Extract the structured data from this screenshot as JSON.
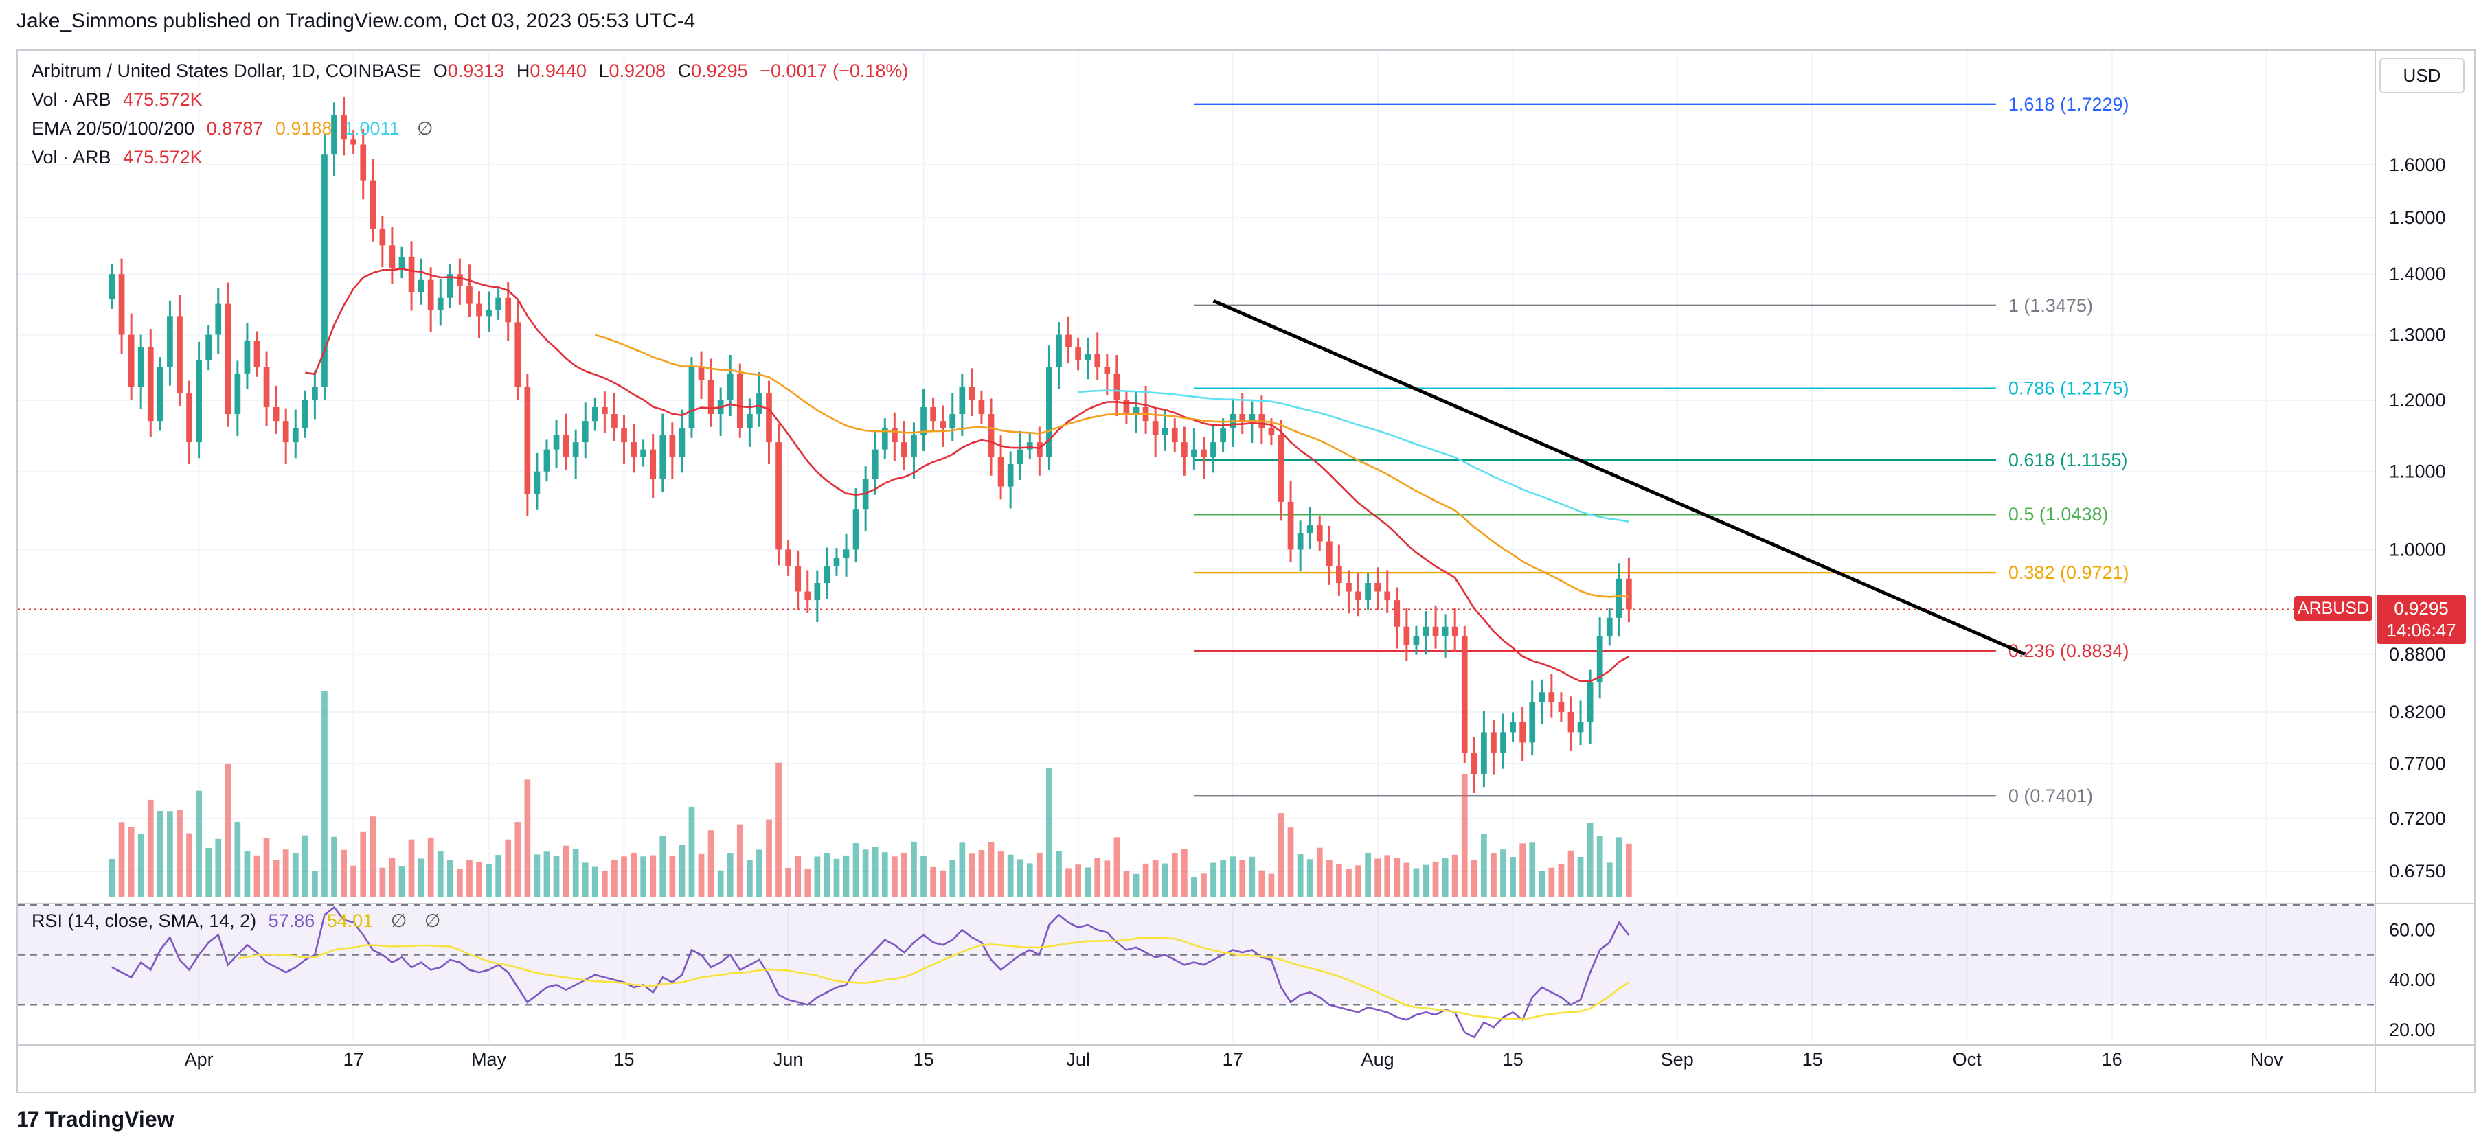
{
  "header": {
    "publisher": "Jake_Simmons published on TradingView.com, Oct 03, 2023 05:53 UTC-4"
  },
  "legend": {
    "symbol": "Arbitrum / United States Dollar, 1D, COINBASE",
    "ohlc": [
      {
        "k": "O",
        "v": "0.9313"
      },
      {
        "k": "H",
        "v": "0.9440"
      },
      {
        "k": "L",
        "v": "0.9208"
      },
      {
        "k": "C",
        "v": "0.9295"
      }
    ],
    "change": "−0.0017 (−0.18%)",
    "vol_label": "Vol · ARB",
    "vol_value": "475.572K",
    "ema_label": "EMA 20/50/100/200",
    "ema_values": [
      "0.8787",
      "0.9188",
      "1.0011"
    ],
    "vol2_label": "Vol · ARB",
    "vol2_value": "475.572K",
    "hide_icon": "∅"
  },
  "rsi_legend": {
    "label": "RSI (14, close, SMA, 14, 2)",
    "rsi": "57.86",
    "sma": "54.01",
    "icons": [
      "∅",
      "∅"
    ]
  },
  "axis": {
    "currency": "USD",
    "price_ticks": [
      "1.6000",
      "1.5000",
      "1.4000",
      "1.3000",
      "1.2000",
      "1.1000",
      "1.0000",
      "0.8800",
      "0.8200",
      "0.7700",
      "0.7200",
      "0.6750"
    ],
    "rsi_ticks": [
      "60.00",
      "40.00",
      "20.00"
    ],
    "time_ticks": [
      "Apr",
      "17",
      "May",
      "15",
      "Jun",
      "15",
      "Jul",
      "17",
      "Aug",
      "15",
      "Sep",
      "15",
      "Oct",
      "16",
      "Nov"
    ]
  },
  "price_badge": {
    "symbol": "ARBUSD",
    "price": "0.9295",
    "countdown": "14:06:47"
  },
  "fibonacci": [
    {
      "label": "1.618 (1.7229)",
      "level": 1.7229,
      "color": "#2962ff"
    },
    {
      "label": "1 (1.3475)",
      "level": 1.3475,
      "color": "#787b86"
    },
    {
      "label": "0.786 (1.2175)",
      "level": 1.2175,
      "color": "#00bcd4"
    },
    {
      "label": "0.618 (1.1155)",
      "level": 1.1155,
      "color": "#089981"
    },
    {
      "label": "0.5 (1.0438)",
      "level": 1.0438,
      "color": "#4caf50"
    },
    {
      "label": "0.382 (0.9721)",
      "level": 0.9721,
      "color": "#f0a500"
    },
    {
      "label": "0.236 (0.8834)",
      "level": 0.8834,
      "color": "#e0303a"
    },
    {
      "label": "0 (0.7401)",
      "level": 0.7401,
      "color": "#787b86"
    }
  ],
  "colors": {
    "up": "#26a69a",
    "down": "#ef5350",
    "ema20": "#e0303a",
    "ema50": "#f3a01e",
    "ema100": "#5ee0f0",
    "rsi_line": "#7e57c2",
    "rsi_sma": "#f7e23e",
    "trendline": "#000000"
  },
  "footer": {
    "logo_mark": "17",
    "logo_text": "TradingView"
  },
  "chart_data": {
    "type": "candlestick",
    "title": "Arbitrum / United States Dollar, 1D, COINBASE",
    "ylabel": "USD",
    "ylim": [
      0.66,
      1.78
    ],
    "x_start": "2023-03-23",
    "x_end_axis": "2023-11-05",
    "close": [
      1.4,
      1.3,
      1.22,
      1.28,
      1.17,
      1.25,
      1.33,
      1.21,
      1.14,
      1.26,
      1.3,
      1.35,
      1.18,
      1.24,
      1.29,
      1.25,
      1.19,
      1.17,
      1.14,
      1.16,
      1.2,
      1.22,
      1.62,
      1.7,
      1.65,
      1.64,
      1.57,
      1.48,
      1.45,
      1.41,
      1.43,
      1.37,
      1.39,
      1.34,
      1.36,
      1.4,
      1.38,
      1.35,
      1.33,
      1.34,
      1.36,
      1.32,
      1.22,
      1.07,
      1.1,
      1.13,
      1.15,
      1.12,
      1.14,
      1.17,
      1.19,
      1.18,
      1.16,
      1.14,
      1.12,
      1.13,
      1.09,
      1.15,
      1.12,
      1.16,
      1.25,
      1.23,
      1.18,
      1.2,
      1.24,
      1.16,
      1.18,
      1.21,
      1.14,
      1.0,
      0.98,
      0.95,
      0.94,
      0.96,
      0.98,
      0.99,
      1.0,
      1.05,
      1.09,
      1.13,
      1.16,
      1.14,
      1.12,
      1.15,
      1.19,
      1.17,
      1.16,
      1.18,
      1.22,
      1.2,
      1.18,
      1.12,
      1.08,
      1.11,
      1.13,
      1.14,
      1.12,
      1.25,
      1.3,
      1.28,
      1.26,
      1.27,
      1.25,
      1.24,
      1.2,
      1.18,
      1.19,
      1.17,
      1.15,
      1.16,
      1.14,
      1.12,
      1.13,
      1.12,
      1.14,
      1.16,
      1.18,
      1.17,
      1.18,
      1.16,
      1.15,
      1.06,
      1.0,
      1.02,
      1.03,
      1.01,
      0.98,
      0.96,
      0.95,
      0.94,
      0.96,
      0.95,
      0.94,
      0.91,
      0.89,
      0.9,
      0.91,
      0.9,
      0.91,
      0.9,
      0.78,
      0.76,
      0.8,
      0.78,
      0.8,
      0.81,
      0.79,
      0.83,
      0.84,
      0.83,
      0.82,
      0.8,
      0.81,
      0.85,
      0.9,
      0.92,
      0.965,
      0.9295
    ],
    "ema_20": "drawn as red moving-average line",
    "ema_50": "drawn as orange moving-average line",
    "ema_100": "drawn as cyan moving-average line",
    "fib_levels": [
      1.7229,
      1.3475,
      1.2175,
      1.1155,
      1.0438,
      0.9721,
      0.8834,
      0.7401
    ],
    "trendline": {
      "from": {
        "date": "2023-07-15",
        "price": 1.355
      },
      "to": {
        "date": "2023-10-07",
        "price": 0.88
      }
    },
    "volume_label": "Vol · ARB",
    "last_volume": "475.572K",
    "rsi": {
      "ylim": [
        15,
        70
      ],
      "levels": [
        30,
        70
      ],
      "last_rsi": 57.86,
      "last_sma": 54.01,
      "values": [
        45,
        43,
        41,
        47,
        44,
        52,
        57,
        48,
        44,
        50,
        55,
        58,
        46,
        50,
        54,
        51,
        47,
        45,
        43,
        45,
        48,
        50,
        66,
        69,
        64,
        63,
        58,
        52,
        50,
        47,
        49,
        45,
        47,
        44,
        45,
        48,
        47,
        44,
        43,
        44,
        46,
        43,
        37,
        31,
        34,
        37,
        38,
        36,
        38,
        40,
        42,
        41,
        40,
        39,
        37,
        38,
        35,
        41,
        39,
        42,
        52,
        50,
        45,
        47,
        50,
        44,
        46,
        48,
        42,
        34,
        32,
        31,
        30,
        33,
        35,
        37,
        38,
        44,
        48,
        52,
        56,
        54,
        51,
        55,
        58,
        55,
        54,
        56,
        60,
        57,
        55,
        48,
        44,
        47,
        50,
        52,
        50,
        62,
        66,
        63,
        61,
        62,
        60,
        59,
        55,
        52,
        53,
        51,
        49,
        50,
        48,
        46,
        47,
        46,
        48,
        50,
        52,
        51,
        52,
        49,
        48,
        37,
        31,
        34,
        35,
        33,
        30,
        29,
        28,
        27,
        29,
        28,
        27,
        25,
        24,
        26,
        27,
        26,
        28,
        27,
        19,
        17,
        23,
        21,
        25,
        27,
        24,
        33,
        37,
        35,
        33,
        30,
        32,
        43,
        52,
        55,
        63,
        57.86
      ]
    }
  }
}
